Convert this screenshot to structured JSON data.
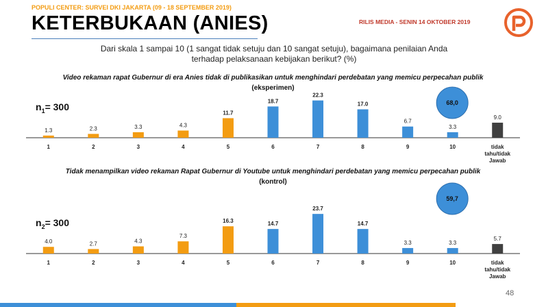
{
  "header": {
    "survey": "POPULI CENTER: SURVEI DKI JAKARTA (09 - 18 SEPTEMBER 2019)",
    "title": "KETERBUKAAN (ANIES)",
    "release": "RILIS MEDIA - SENIN 14 OKTOBER 2019",
    "logo_icon": "populi-logo-icon"
  },
  "question_line1": "Dari skala 1 sampai 10 (1 sangat tidak setuju dan 10 sangat setuju), bagaimana penilaian Anda",
  "question_line2": "terhadap pelaksanaan kebijakan berikut? (%)",
  "colors": {
    "orange": "#F39C12",
    "blue": "#3D8FD8",
    "dark": "#404040",
    "bubble": "#3D8FD8"
  },
  "chart_data": [
    {
      "type": "bar",
      "title": "Video rekaman rapat Gubernur di era Anies tidak di publikasikan untuk menghindari perdebatan yang memicu perpecahan publik",
      "subtitle": "(eksperimen)",
      "sample_prefix": "n",
      "sample_index": "1",
      "sample_value": "= 300",
      "categories": [
        "1",
        "2",
        "3",
        "4",
        "5",
        "6",
        "7",
        "8",
        "9",
        "10",
        "tidak tahu/tidak Jawab"
      ],
      "category_lines": [
        [
          "1"
        ],
        [
          "2"
        ],
        [
          "3"
        ],
        [
          "4"
        ],
        [
          "5"
        ],
        [
          "6"
        ],
        [
          "7"
        ],
        [
          "8"
        ],
        [
          "9"
        ],
        [
          "10"
        ],
        [
          "tidak",
          "tahu/tidak",
          "Jawab"
        ]
      ],
      "values": [
        1.3,
        2.3,
        3.3,
        4.3,
        11.7,
        18.7,
        22.3,
        17.0,
        6.7,
        3.3,
        9.0
      ],
      "value_labels": [
        "1.3",
        "2.3",
        "3.3",
        "4.3",
        "11.7",
        "18.7",
        "22.3",
        "17.0",
        "6.7",
        "3.3",
        "9.0"
      ],
      "bar_colors": [
        "orange",
        "orange",
        "orange",
        "orange",
        "orange",
        "blue",
        "blue",
        "blue",
        "blue",
        "blue",
        "dark"
      ],
      "highlight": "68,0",
      "ylim": [
        0,
        25
      ]
    },
    {
      "type": "bar",
      "title": "Tidak menampilkan video rekaman Rapat Gubernur di Youtube untuk menghindari perdebatan yang memicu perpecahan publik",
      "subtitle": "(kontrol)",
      "sample_prefix": "n",
      "sample_index": "2",
      "sample_value": "= 300",
      "categories": [
        "1",
        "2",
        "3",
        "4",
        "5",
        "6",
        "7",
        "8",
        "9",
        "10",
        "tidak tahu/tidak Jawab"
      ],
      "category_lines": [
        [
          "1"
        ],
        [
          "2"
        ],
        [
          "3"
        ],
        [
          "4"
        ],
        [
          "5"
        ],
        [
          "6"
        ],
        [
          "7"
        ],
        [
          "8"
        ],
        [
          "9"
        ],
        [
          "10"
        ],
        [
          "tidak",
          "tahu/tidak",
          "Jawab"
        ]
      ],
      "values": [
        4.0,
        2.7,
        4.3,
        7.3,
        16.3,
        14.7,
        23.7,
        14.7,
        3.3,
        3.3,
        5.7
      ],
      "value_labels": [
        "4.0",
        "2.7",
        "4.3",
        "7.3",
        "16.3",
        "14.7",
        "23.7",
        "14.7",
        "3.3",
        "3.3",
        "5.7"
      ],
      "bar_colors": [
        "orange",
        "orange",
        "orange",
        "orange",
        "orange",
        "blue",
        "blue",
        "blue",
        "blue",
        "blue",
        "dark"
      ],
      "highlight": "59,7",
      "ylim": [
        0,
        25
      ]
    }
  ],
  "page_number": "48"
}
